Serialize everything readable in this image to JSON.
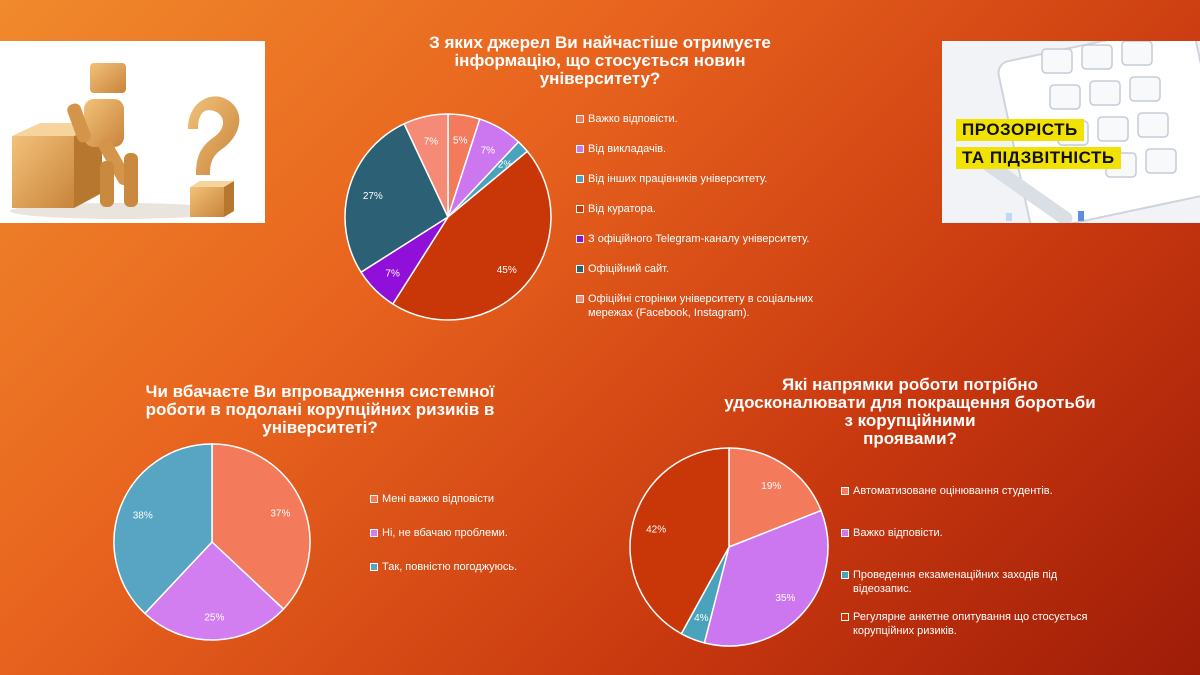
{
  "chart_data": [
    {
      "type": "pie",
      "title": "З яких джерел Ви найчастіше отримуєте інформацію, що стосується новин університету?",
      "categories": [
        "Важко відповісти.",
        "Від викладачів.",
        "Від інших працівників університету.",
        "Від куратора.",
        "З офіційного Telegram-каналу університету.",
        "Офіційний сайт.",
        "Офіційні сторінки університету в соціальних мережах (Facebook, Instagram)."
      ],
      "values": [
        5,
        7,
        2,
        45,
        7,
        27,
        7
      ],
      "labels": [
        "5%",
        "7%",
        "2%",
        "45%",
        "7%",
        "27%",
        "7%"
      ],
      "colors": [
        "#f47a5c",
        "#cc77ef",
        "#4aa3bd",
        "#c93608",
        "#9010da",
        "#2c6075",
        "#f58a76"
      ],
      "legend_position": "right"
    },
    {
      "type": "pie",
      "title": "Чи вбачаєте Ви впровадження системної роботи в подолані корупційних ризиків в університеті?",
      "categories": [
        "Мені важко відповісти",
        "Ні, не вбачаю проблеми.",
        "Так, повністю погоджуюсь."
      ],
      "values": [
        37,
        25,
        38
      ],
      "labels": [
        "37%",
        "25%",
        "38%"
      ],
      "colors": [
        "#f47a5c",
        "#d27df0",
        "#57a5c3"
      ],
      "legend_position": "right"
    },
    {
      "type": "pie",
      "title": "Які напрямки роботи потрібно удосконалювати для покращення боротьби з корупційними проявами?",
      "categories": [
        "Автоматизоване оцінювання студентів.",
        "Важко відповісти.",
        "Проведення екзаменаційних заходів під відеозапис.",
        "Регулярне анкетне опитування що стосується корупційних ризиків."
      ],
      "values": [
        19,
        35,
        4,
        42
      ],
      "labels": [
        "19%",
        "35%",
        "4%",
        "42%"
      ],
      "colors": [
        "#f47a5c",
        "#cc77ef",
        "#4aa3bd",
        "#c93608"
      ],
      "legend_position": "right"
    }
  ],
  "titles": {
    "chart1": [
      "З яких джерел Ви найчастіше отримуєте",
      "інформацію, що стосується новин",
      "університету?"
    ],
    "chart2": [
      "Чи вбачаєте Ви впровадження системної",
      "роботи в подолані корупційних ризиків в",
      "університеті?"
    ],
    "chart3": [
      "Які напрямки роботи потрібно",
      "удосконалювати для покращення боротьби",
      "з корупційними",
      "проявами?"
    ]
  },
  "legends": {
    "chart1": [
      [
        "Важко відповісти."
      ],
      [
        "Від викладачів."
      ],
      [
        "Від інших працівників університету."
      ],
      [
        "Від куратора."
      ],
      [
        "З офіційного Telegram-каналу університету."
      ],
      [
        "Офіційний сайт."
      ],
      [
        "Офіційні сторінки університету в соціальних",
        "мережах (Facebook, Instagram)."
      ]
    ],
    "chart2": [
      [
        "Мені важко відповісти"
      ],
      [
        "Ні, не вбачаю проблеми."
      ],
      [
        "Так, повністю погоджуюсь."
      ]
    ],
    "chart3": [
      [
        "Автоматизоване оцінювання студентів."
      ],
      [
        "Важко відповісти."
      ],
      [
        "Проведення екзаменаційних заходів під",
        "відеозапис."
      ],
      [
        "Регулярне анкетне опитування що стосується",
        "корупційних ризиків."
      ]
    ]
  },
  "images": {
    "right_picture": {
      "line1": "ПРОЗОРІСТЬ",
      "line2": "ТА ПІДЗВІТНІСТЬ",
      "highlight": "#f2e204"
    }
  },
  "icons": {
    "left_picture": "thinking-figure-question-mark-picture",
    "right_picture": "calculator-pen-picture"
  }
}
